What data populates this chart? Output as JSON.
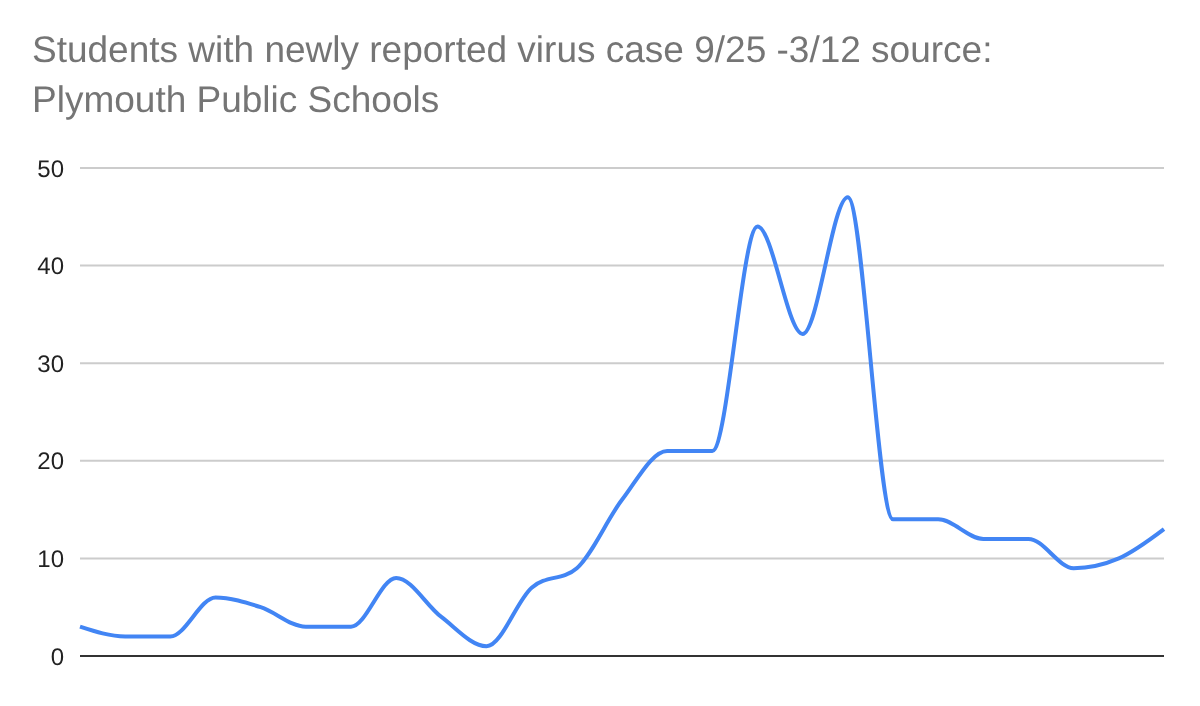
{
  "chart_data": {
    "type": "line",
    "title": "Students with newly reported virus case 9/25 -3/12 source: Plymouth Public Schools",
    "categories": [
      null,
      null,
      null,
      null,
      null,
      null,
      null,
      null,
      null,
      null,
      null,
      null,
      null,
      null,
      null,
      null,
      null,
      null,
      null,
      null,
      null,
      null,
      null,
      null,
      null
    ],
    "series": [
      {
        "color": "#4285f4",
        "values": [
          3,
          2,
          2,
          6,
          5,
          3,
          3,
          8,
          4,
          1,
          7,
          9,
          16,
          21,
          21,
          44,
          33,
          47,
          14,
          14,
          12,
          12,
          9,
          10,
          13
        ]
      }
    ],
    "ylim": [
      0,
      50
    ],
    "yticks": [
      0,
      10,
      20,
      30,
      40,
      50
    ],
    "grid": "y",
    "legend": false,
    "marker": "none",
    "line_style": "solid"
  }
}
